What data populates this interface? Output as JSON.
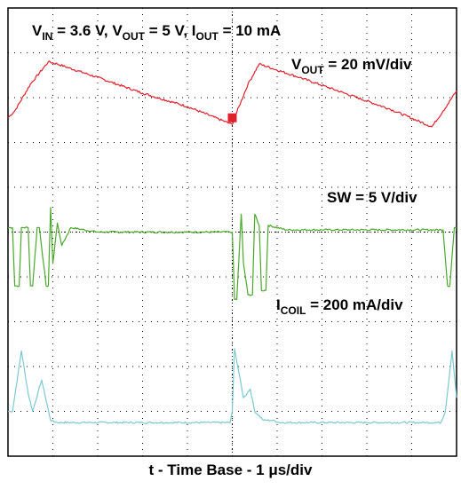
{
  "chart_data": {
    "type": "line",
    "title_parts": {
      "v": "V",
      "in": "IN",
      "vin_val": " = 3.6 V, ",
      "out": "OUT",
      "vout_val": " = 5 V, I",
      "iout_val": " = 10 mA"
    },
    "channel_labels": {
      "vout": {
        "v": "V",
        "sub": "OUT",
        "rest": " = 20 mV/div"
      },
      "sw": "SW = 5 V/div",
      "icoil": {
        "i": "I",
        "sub": "COIL",
        "rest": " = 200 mA/div"
      }
    },
    "x_label": "t - Time Base - 1 μs/div",
    "grid": {
      "h_divs": 10,
      "v_divs": 10,
      "dotted": true
    },
    "colors": {
      "vout": "#e0202a",
      "sw": "#4aa82a",
      "icoil": "#7cc8d0",
      "grid": "#000000"
    },
    "series": [
      {
        "name": "VOUT",
        "x": [
          0,
          0.15,
          0.5,
          0.9,
          1.1,
          2.0,
          3.0,
          4.0,
          5.0,
          5.05,
          5.35,
          5.6,
          6.5,
          7.5,
          8.5,
          9.45,
          9.7,
          10.0
        ],
        "y": [
          7.55,
          7.7,
          8.3,
          8.8,
          8.75,
          8.45,
          8.1,
          7.8,
          7.4,
          7.55,
          8.3,
          8.75,
          8.45,
          8.1,
          7.75,
          7.35,
          7.7,
          8.15
        ]
      },
      {
        "name": "SW",
        "x": [
          0,
          0.1,
          0.15,
          0.25,
          0.3,
          0.45,
          0.5,
          0.55,
          0.65,
          0.7,
          0.85,
          0.9,
          0.95,
          1.0,
          1.1,
          1.2,
          1.4,
          2.0,
          5.0,
          5.05,
          5.1,
          5.2,
          5.25,
          5.35,
          5.45,
          5.5,
          5.6,
          5.65,
          5.75,
          5.8,
          6.2,
          9.7,
          9.8,
          9.85,
          9.95,
          10.0
        ],
        "y": [
          5.1,
          5.1,
          3.8,
          3.8,
          5.1,
          5.1,
          3.8,
          3.8,
          5.1,
          5.1,
          3.8,
          3.8,
          5.55,
          4.3,
          5.2,
          4.7,
          5.1,
          5.0,
          5.0,
          3.5,
          3.5,
          5.4,
          4.3,
          3.6,
          3.6,
          5.4,
          5.15,
          3.7,
          3.7,
          5.15,
          5.05,
          5.05,
          3.8,
          3.8,
          5.1,
          5.1
        ]
      },
      {
        "name": "ICOIL",
        "x": [
          0,
          0.1,
          0.3,
          0.45,
          0.55,
          0.75,
          0.95,
          1.1,
          3.0,
          4.95,
          5.0,
          5.05,
          5.25,
          5.4,
          5.5,
          5.7,
          5.9,
          6.05,
          8.0,
          9.65,
          9.75,
          9.9,
          10.0
        ],
        "y": [
          1.0,
          1.0,
          2.35,
          1.4,
          1.0,
          1.7,
          0.8,
          0.75,
          0.75,
          0.75,
          1.0,
          2.4,
          1.3,
          1.5,
          1.0,
          0.8,
          0.8,
          0.75,
          0.75,
          0.75,
          1.0,
          2.35,
          1.3
        ]
      }
    ]
  }
}
